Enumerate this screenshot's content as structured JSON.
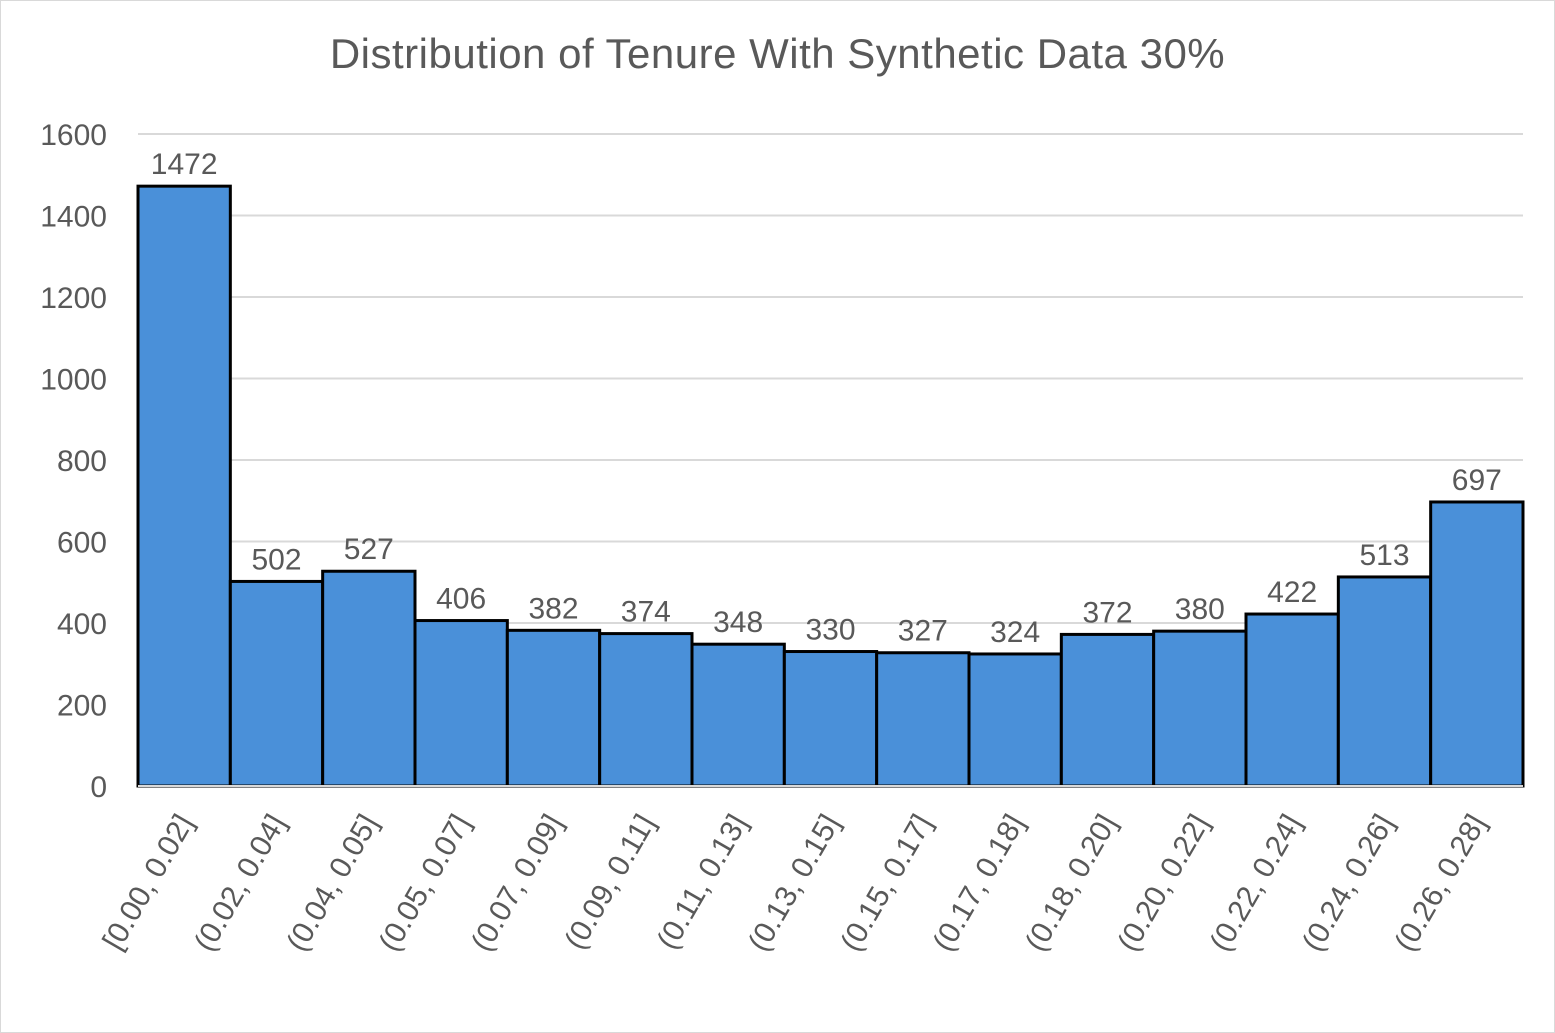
{
  "chart_data": {
    "type": "bar",
    "title": "Distribution of Tenure With Synthetic Data 30%",
    "categories": [
      "[0.00, 0.02]",
      "(0.02, 0.04]",
      "(0.04, 0.05]",
      "(0.05, 0.07]",
      "(0.07, 0.09]",
      "(0.09, 0.11]",
      "(0.11, 0.13]",
      "(0.13, 0.15]",
      "(0.15, 0.17]",
      "(0.17, 0.18]",
      "(0.18, 0.20]",
      "(0.20, 0.22]",
      "(0.22, 0.24]",
      "(0.24, 0.26]",
      "(0.26, 0.28]"
    ],
    "values": [
      1472,
      502,
      527,
      406,
      382,
      374,
      348,
      330,
      327,
      324,
      372,
      380,
      422,
      513,
      697
    ],
    "xlabel": "",
    "ylabel": "",
    "ylim": [
      0,
      1600
    ],
    "yticks": [
      0,
      200,
      400,
      600,
      800,
      1000,
      1200,
      1400,
      1600
    ],
    "grid": true,
    "data_labels": true,
    "bar_color": "#4a90d9",
    "bar_edge_color": "#000000"
  }
}
